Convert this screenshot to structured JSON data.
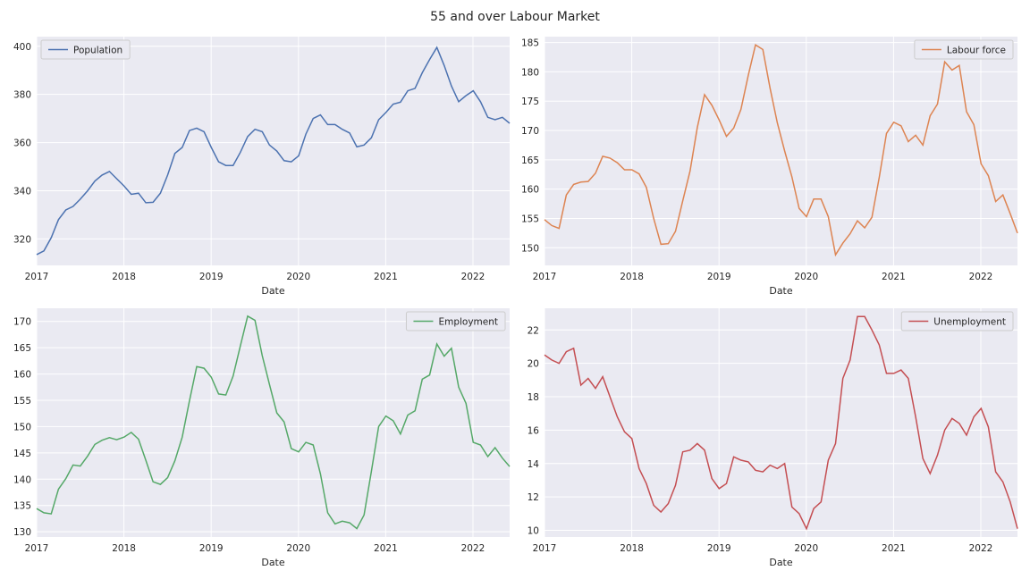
{
  "figure": {
    "title": "55 and over Labour Market"
  },
  "chart_data": [
    {
      "type": "line",
      "xlabel": "Date",
      "ylabel": "",
      "x_ticks": [
        "2017",
        "2018",
        "2019",
        "2020",
        "2021",
        "2022"
      ],
      "xlim": [
        2017.0,
        2022.42
      ],
      "ylim": [
        309,
        404
      ],
      "y_ticks": [
        320,
        340,
        360,
        380,
        400
      ],
      "legend_loc": "top-left",
      "grid": true,
      "color": "#4c72b0",
      "series": [
        {
          "name": "Population",
          "values": [
            313.5,
            315.0,
            320.5,
            328.0,
            332.0,
            333.5,
            336.5,
            340.0,
            344.0,
            346.5,
            348.0,
            345.0,
            342.0,
            338.5,
            339.0,
            335.0,
            335.2,
            339.0,
            346.5,
            355.5,
            358.0,
            365.0,
            366.0,
            364.5,
            358.0,
            352.0,
            350.5,
            350.5,
            356.0,
            362.5,
            365.5,
            364.5,
            359.0,
            356.5,
            352.5,
            352.0,
            354.5,
            363.5,
            370.0,
            371.5,
            367.5,
            367.5,
            365.5,
            364.0,
            358.2,
            359.0,
            362.0,
            369.5,
            372.5,
            376.0,
            376.8,
            381.5,
            382.5,
            389.0,
            394.5,
            399.5,
            392.0,
            383.5,
            377.0,
            379.5,
            381.5,
            377.0,
            370.5,
            369.5,
            370.5,
            368.0
          ]
        }
      ]
    },
    {
      "type": "line",
      "xlabel": "Date",
      "ylabel": "",
      "x_ticks": [
        "2017",
        "2018",
        "2019",
        "2020",
        "2021",
        "2022"
      ],
      "xlim": [
        2017.0,
        2022.42
      ],
      "ylim": [
        147,
        186
      ],
      "y_ticks": [
        150,
        155,
        160,
        165,
        170,
        175,
        180,
        185
      ],
      "legend_loc": "top-right",
      "grid": true,
      "color": "#dd8452",
      "series": [
        {
          "name": "Labour force",
          "values": [
            154.8,
            153.8,
            153.3,
            159.0,
            160.8,
            161.2,
            161.3,
            162.7,
            165.6,
            165.3,
            164.5,
            163.3,
            163.3,
            162.6,
            160.3,
            155.0,
            150.6,
            150.7,
            152.8,
            158.0,
            163.1,
            170.5,
            176.1,
            174.3,
            171.8,
            169.0,
            170.4,
            173.6,
            179.4,
            184.6,
            183.8,
            177.2,
            171.3,
            166.5,
            162.1,
            156.7,
            155.3,
            158.3,
            158.3,
            155.3,
            148.8,
            150.8,
            152.4,
            154.6,
            153.4,
            155.2,
            162.0,
            169.5,
            171.4,
            170.8,
            168.1,
            169.2,
            167.5,
            172.5,
            174.5,
            181.7,
            180.3,
            181.1,
            173.2,
            171.0,
            164.3,
            162.3,
            157.9,
            159.0,
            155.8,
            152.5
          ]
        }
      ]
    },
    {
      "type": "line",
      "xlabel": "Date",
      "ylabel": "",
      "x_ticks": [
        "2017",
        "2018",
        "2019",
        "2020",
        "2021",
        "2022"
      ],
      "xlim": [
        2017.0,
        2022.42
      ],
      "ylim": [
        129,
        172.5
      ],
      "y_ticks": [
        130,
        135,
        140,
        145,
        150,
        155,
        160,
        165,
        170
      ],
      "legend_loc": "top-right",
      "grid": true,
      "color": "#55a868",
      "series": [
        {
          "name": "Employment",
          "values": [
            134.4,
            133.6,
            133.4,
            138.1,
            140.1,
            142.7,
            142.5,
            144.4,
            146.6,
            147.4,
            147.9,
            147.5,
            148.0,
            148.9,
            147.6,
            143.6,
            139.5,
            139.0,
            140.3,
            143.5,
            148.0,
            154.9,
            161.4,
            161.1,
            159.4,
            156.2,
            156.0,
            159.6,
            165.4,
            171.0,
            170.2,
            163.5,
            158.0,
            152.6,
            150.9,
            145.8,
            145.2,
            147.0,
            146.5,
            141.0,
            133.6,
            131.5,
            132.0,
            131.7,
            130.6,
            133.2,
            141.5,
            150.0,
            152.0,
            151.1,
            148.6,
            152.2,
            153.0,
            159.0,
            159.8,
            165.7,
            163.4,
            164.9,
            157.5,
            154.4,
            147.0,
            146.5,
            144.3,
            146.0,
            144.0,
            142.4
          ]
        }
      ]
    },
    {
      "type": "line",
      "xlabel": "Date",
      "ylabel": "",
      "x_ticks": [
        "2017",
        "2018",
        "2019",
        "2020",
        "2021",
        "2022"
      ],
      "xlim": [
        2017.0,
        2022.42
      ],
      "ylim": [
        9.6,
        23.3
      ],
      "y_ticks": [
        10,
        12,
        14,
        16,
        18,
        20,
        22
      ],
      "legend_loc": "top-right",
      "grid": true,
      "color": "#c44e52",
      "series": [
        {
          "name": "Unemployment",
          "values": [
            20.5,
            20.2,
            20.0,
            20.7,
            20.9,
            18.7,
            19.1,
            18.5,
            19.2,
            18.0,
            16.8,
            15.9,
            15.5,
            13.7,
            12.8,
            11.5,
            11.1,
            11.6,
            12.7,
            14.7,
            14.8,
            15.2,
            14.8,
            13.1,
            12.5,
            12.8,
            14.4,
            14.2,
            14.1,
            13.6,
            13.5,
            13.9,
            13.7,
            14.0,
            11.4,
            11.0,
            10.1,
            11.3,
            11.7,
            14.2,
            15.2,
            19.1,
            20.2,
            22.8,
            22.8,
            22.0,
            21.1,
            19.4,
            19.4,
            19.6,
            19.1,
            16.8,
            14.3,
            13.4,
            14.5,
            16.0,
            16.7,
            16.4,
            15.7,
            16.8,
            17.3,
            16.2,
            13.5,
            12.9,
            11.7,
            10.1
          ]
        }
      ]
    }
  ]
}
